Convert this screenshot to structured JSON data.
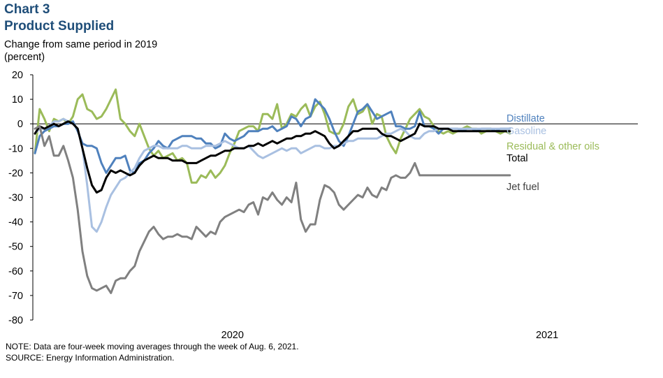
{
  "header": {
    "chart_number": "Chart 3",
    "title": "Product Supplied",
    "ylabel_line1": "Change from same period in 2019",
    "ylabel_line2": "(percent)"
  },
  "footer": {
    "note": "NOTE: Data are four-week  moving averages  through the week of Aug. 6, 2021.",
    "source": "SOURCE: Energy Information  Administration."
  },
  "colors": {
    "title": "#1f4e79",
    "Distillate": "#4f81bd",
    "Gasoline": "#a9c0e1",
    "Residual & other oils": "#9bbb59",
    "Total": "#000000",
    "Jet fuel": "#808080",
    "axis": "#000000"
  },
  "chart_data": {
    "type": "line",
    "xlim": [
      0,
      100
    ],
    "ylim": [
      -80,
      20
    ],
    "yticks": [
      20,
      10,
      0,
      -10,
      -20,
      -30,
      -40,
      -50,
      -60,
      -70,
      -80
    ],
    "xtick_labels": [
      {
        "label": "2020",
        "pos": 33
      },
      {
        "label": "2021",
        "pos": 85
      }
    ],
    "grid": false,
    "series": [
      {
        "name": "Residual & other oils",
        "label_color": "#9bbb59",
        "values": [
          -12,
          6,
          2,
          -3,
          2,
          1,
          2,
          0,
          3,
          10,
          12,
          6,
          5,
          2,
          3,
          6,
          10,
          14,
          2,
          0,
          -3,
          -5,
          0,
          -5,
          -10,
          -13,
          -11,
          -14,
          -13,
          -12,
          -15,
          -14,
          -16,
          -24,
          -24,
          -21,
          -22,
          -19,
          -22,
          -20,
          -17,
          -12,
          -8,
          -3,
          -2,
          -1,
          -1,
          -3,
          4,
          4,
          2,
          8,
          -2,
          0,
          4,
          3,
          6,
          8,
          3,
          7,
          9,
          4,
          -3,
          -4,
          -4,
          0,
          7,
          10,
          4,
          5,
          8,
          0,
          4,
          3,
          -5,
          -9,
          -12,
          -6,
          -2,
          2,
          4,
          6,
          3,
          2,
          -1,
          -3,
          -4,
          -3,
          -4,
          -3,
          -2,
          -1,
          -2,
          -2,
          -4,
          -3,
          -2,
          -3,
          -4,
          -3,
          -4
        ]
      },
      {
        "name": "Distillate",
        "label_color": "#4f81bd",
        "values": [
          -12,
          -5,
          -3,
          -2,
          -1,
          -1,
          0,
          0,
          1,
          -3,
          -8,
          -9,
          -9,
          -10,
          -16,
          -20,
          -17,
          -14,
          -14,
          -13,
          -19,
          -20,
          -16,
          -15,
          -12,
          -10,
          -7,
          -9,
          -10,
          -7,
          -6,
          -5,
          -5,
          -5,
          -6,
          -6,
          -8,
          -8,
          -10,
          -9,
          -4,
          -6,
          -7,
          -6,
          -5,
          -3,
          -3,
          -3,
          -2,
          -2,
          -1,
          -3,
          -2,
          -1,
          3,
          2,
          -1,
          2,
          3,
          10,
          8,
          6,
          2,
          -3,
          -7,
          -9,
          -5,
          0,
          5,
          6,
          8,
          5,
          2,
          3,
          4,
          5,
          -1,
          -1,
          -2,
          -2,
          -1,
          5,
          -1,
          -1,
          -2,
          -4,
          -2,
          -2,
          -2,
          -2,
          -3,
          -2,
          -2,
          -3,
          -2,
          -2,
          -2,
          -3,
          -2,
          -2,
          -2
        ]
      },
      {
        "name": "Gasoline",
        "label_color": "#a9c0e1",
        "values": [
          -4,
          -2,
          -2,
          -1,
          1,
          1,
          2,
          1,
          0,
          -2,
          -10,
          -25,
          -42,
          -44,
          -40,
          -34,
          -29,
          -26,
          -23,
          -22,
          -20,
          -18,
          -14,
          -11,
          -10,
          -9,
          -9,
          -10,
          -10,
          -10,
          -10,
          -9,
          -9,
          -10,
          -10,
          -10,
          -9,
          -9,
          -9,
          -8,
          -7,
          -8,
          -9,
          -10,
          -10,
          -9,
          -11,
          -13,
          -14,
          -13,
          -12,
          -11,
          -10,
          -11,
          -10,
          -10,
          -12,
          -11,
          -10,
          -9,
          -9,
          -10,
          -10,
          -9,
          -9,
          -8,
          -7,
          -7,
          -6,
          -6,
          -6,
          -6,
          -6,
          -5,
          -4,
          -4,
          -3,
          -2,
          -3,
          -5,
          -6,
          -6,
          -4,
          -3,
          -3,
          -2,
          -2,
          -2,
          -2,
          -2,
          -2,
          -2,
          -2,
          -2,
          -2,
          -2,
          -2,
          -2,
          -2,
          -2,
          -2
        ]
      },
      {
        "name": "Total",
        "label_color": "#000000",
        "values": [
          -4,
          -1,
          -2,
          -1,
          0,
          -1,
          0,
          1,
          0,
          -2,
          -10,
          -18,
          -25,
          -28,
          -27,
          -22,
          -19,
          -20,
          -19,
          -20,
          -21,
          -20,
          -17,
          -15,
          -14,
          -13,
          -14,
          -14,
          -14,
          -15,
          -15,
          -15,
          -16,
          -16,
          -16,
          -15,
          -14,
          -13,
          -13,
          -12,
          -11,
          -11,
          -10,
          -10,
          -10,
          -9,
          -9,
          -8,
          -9,
          -8,
          -7,
          -8,
          -7,
          -6,
          -6,
          -5,
          -5,
          -4,
          -4,
          -3,
          -4,
          -5,
          -8,
          -10,
          -9,
          -7,
          -5,
          -3,
          -3,
          -2,
          -2,
          -2,
          -2,
          -4,
          -5,
          -5,
          -6,
          -7,
          -6,
          -5,
          -4,
          0,
          -1,
          -1,
          -1,
          -2,
          -2,
          -2,
          -3,
          -3,
          -3,
          -3,
          -3,
          -3,
          -3,
          -3,
          -3,
          -3,
          -3,
          -3,
          -3
        ]
      },
      {
        "name": "Jet fuel",
        "label_color": "#404040",
        "values": [
          -2,
          -1,
          -9,
          -5,
          -13,
          -13,
          -9,
          -15,
          -22,
          -35,
          -52,
          -62,
          -67,
          -68,
          -67,
          -66,
          -69,
          -64,
          -63,
          -63,
          -60,
          -58,
          -52,
          -48,
          -44,
          -42,
          -45,
          -47,
          -46,
          -46,
          -45,
          -46,
          -46,
          -47,
          -42,
          -44,
          -46,
          -44,
          -45,
          -40,
          -38,
          -37,
          -36,
          -35,
          -36,
          -33,
          -32,
          -37,
          -30,
          -31,
          -28,
          -31,
          -33,
          -30,
          -32,
          -24,
          -39,
          -44,
          -41,
          -41,
          -31,
          -25,
          -26,
          -28,
          -33,
          -35,
          -33,
          -31,
          -29,
          -30,
          -26,
          -29,
          -30,
          -26,
          -27,
          -22,
          -21,
          -22,
          -22,
          -20,
          -16,
          -21,
          -21,
          -21,
          -21,
          -21,
          -21,
          -21,
          -21,
          -21,
          -21,
          -21,
          -21,
          -21,
          -21,
          -21,
          -21,
          -21,
          -21,
          -21,
          -21
        ]
      }
    ]
  }
}
